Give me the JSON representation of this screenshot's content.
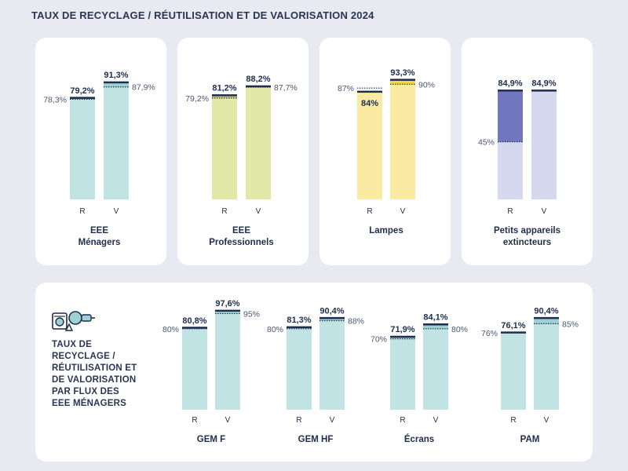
{
  "title": "TAUX DE RECYCLAGE / RÉUTILISATION ET DE VALORISATION 2024",
  "side_text": [
    "TAUX DE",
    "RECYCLAGE /",
    "RÉUTILISATION ET",
    "DE VALORISATION",
    "PAR FLUX DES",
    "EEE MÉNAGERS"
  ],
  "colors": {
    "teal_light": "#c2e3e3",
    "teal_mid": "#9ed2d2",
    "teal_bar_dark": "#3f9a9a",
    "green": "#e2e8a7",
    "green_dark": "#c9d160",
    "yellow": "#fbeaa1",
    "yellow_dark": "#f3d642",
    "lavender": "#d5d8ef",
    "indigo": "#7177bf",
    "navy": "#1f2d4d"
  },
  "chart_data": [
    {
      "type": "bar",
      "name_lines": [
        "EEE",
        "Ménagers"
      ],
      "categories": [
        "R",
        "V"
      ],
      "values": [
        79.2,
        91.3
      ],
      "value_labels": [
        "79,2%",
        "91,3%"
      ],
      "objectives": [
        78.3,
        87.9
      ],
      "objective_labels": [
        "78,3%",
        "87,9%"
      ],
      "color_key": "teal_light"
    },
    {
      "type": "bar",
      "name_lines": [
        "EEE",
        "Professionnels"
      ],
      "categories": [
        "R",
        "V"
      ],
      "values": [
        81.2,
        88.2
      ],
      "value_labels": [
        "81,2%",
        "88,2%"
      ],
      "objectives": [
        79.2,
        87.7
      ],
      "objective_labels": [
        "79,2%",
        "87,7%"
      ],
      "color_key": "green"
    },
    {
      "type": "bar",
      "name_lines": [
        "Lampes"
      ],
      "categories": [
        "R",
        "V"
      ],
      "values": [
        84,
        93.3
      ],
      "value_labels": [
        "84%",
        "93,3%"
      ],
      "objectives": [
        87,
        90
      ],
      "objective_labels": [
        "87%",
        "90%"
      ],
      "color_key": "yellow"
    },
    {
      "type": "bar",
      "name_lines": [
        "Petits appareils",
        "extincteurs"
      ],
      "categories": [
        "R",
        "V"
      ],
      "values": [
        84.9,
        84.9
      ],
      "value_labels": [
        "84,9%",
        "84,9%"
      ],
      "objectives": [
        45,
        null
      ],
      "objective_labels": [
        "45%",
        ""
      ],
      "color_key": "lavender"
    },
    {
      "type": "bar",
      "name_lines": [
        "GEM F"
      ],
      "categories": [
        "R",
        "V"
      ],
      "values": [
        80.8,
        97.6
      ],
      "value_labels": [
        "80,8%",
        "97,6%"
      ],
      "objectives": [
        80,
        95
      ],
      "objective_labels": [
        "80%",
        "95%"
      ],
      "color_key": "teal_light"
    },
    {
      "type": "bar",
      "name_lines": [
        "GEM HF"
      ],
      "categories": [
        "R",
        "V"
      ],
      "values": [
        81.3,
        90.4
      ],
      "value_labels": [
        "81,3%",
        "90,4%"
      ],
      "objectives": [
        80,
        88
      ],
      "objective_labels": [
        "80%",
        "88%"
      ],
      "color_key": "teal_light"
    },
    {
      "type": "bar",
      "name_lines": [
        "Écrans"
      ],
      "categories": [
        "R",
        "V"
      ],
      "values": [
        71.9,
        84.1
      ],
      "value_labels": [
        "71,9%",
        "84,1%"
      ],
      "objectives": [
        70,
        80
      ],
      "objective_labels": [
        "70%",
        "80%"
      ],
      "color_key": "teal_light"
    },
    {
      "type": "bar",
      "name_lines": [
        "PAM"
      ],
      "categories": [
        "R",
        "V"
      ],
      "values": [
        76.1,
        90.4
      ],
      "value_labels": [
        "76,1%",
        "90,4%"
      ],
      "objectives": [
        76,
        85
      ],
      "objective_labels": [
        "76%",
        "85%"
      ],
      "color_key": "teal_light"
    }
  ]
}
